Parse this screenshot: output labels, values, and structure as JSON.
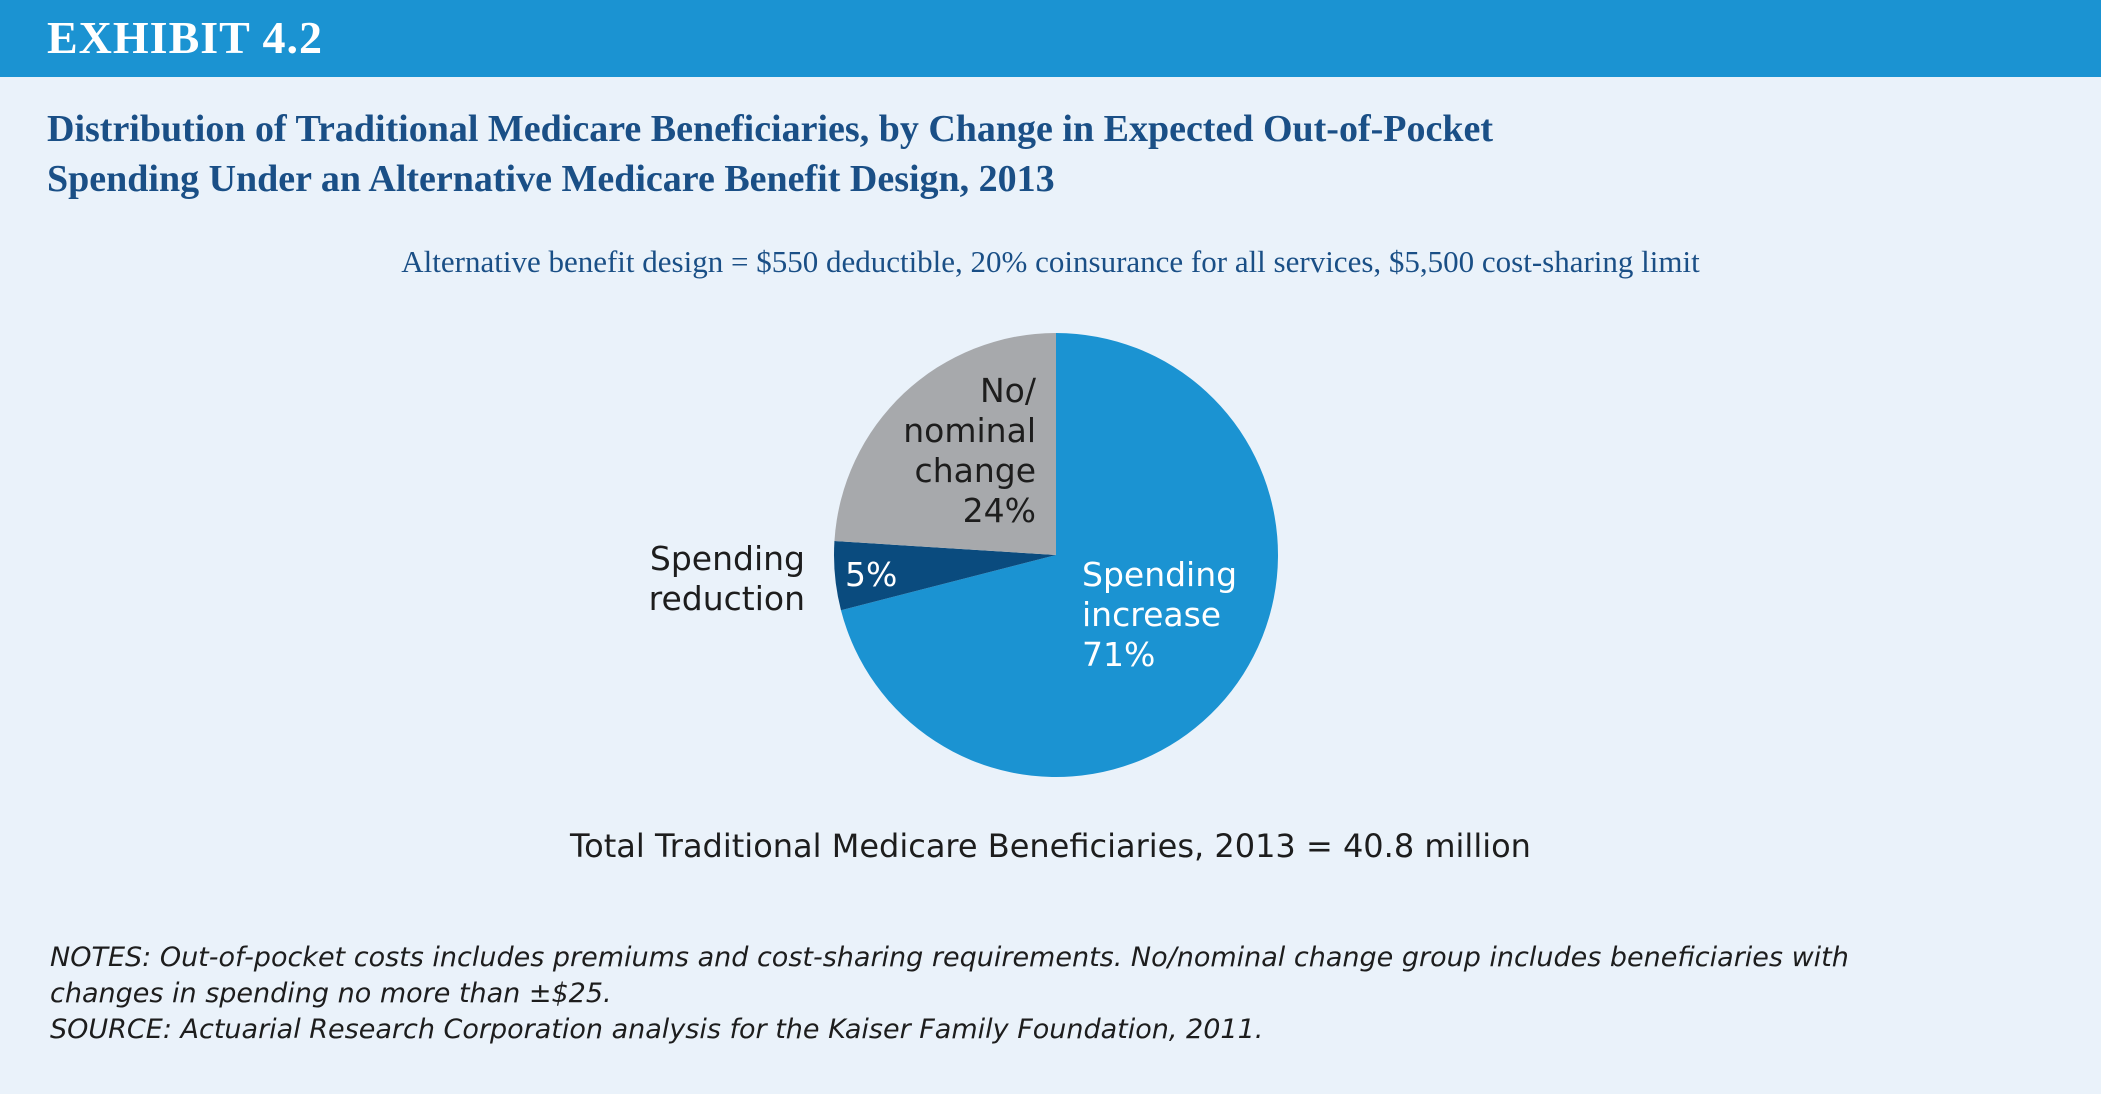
{
  "exhibit": {
    "label": "EXHIBIT 4.2",
    "color": "#1b93d2"
  },
  "title_lines": [
    "Distribution of Traditional Medicare Beneficiaries, by Change in Expected Out-of-Pocket",
    "Spending Under an Alternative Medicare Benefit Design, 2013"
  ],
  "subtitle": "Alternative benefit design = $550 deductible, 20% coinsurance for all services, $5,500 cost-sharing limit",
  "chart_data": {
    "type": "pie",
    "title": "Distribution of Traditional Medicare Beneficiaries, by Change in Expected Out-of-Pocket Spending Under an Alternative Medicare Benefit Design, 2013",
    "subtitle": "Alternative benefit design = $550 deductible, 20% coinsurance for all services, $5,500 cost-sharing limit",
    "unit": "%",
    "slices": [
      {
        "label_lines": [
          "Spending",
          "increase"
        ],
        "value": 71,
        "value_label": "71%",
        "color": "#1b93d2"
      },
      {
        "label_lines": [
          "Spending",
          "reduction"
        ],
        "value": 5,
        "value_label": "5%",
        "color": "#0a4b7e"
      },
      {
        "label_lines": [
          "No/",
          "nominal",
          "change"
        ],
        "value": 24,
        "value_label": "24%",
        "color": "#a7a9ac"
      }
    ],
    "total_text": "Total Traditional Medicare Beneficiaries, 2013 = 40.8 million"
  },
  "notes": {
    "lines": [
      "NOTES:  Out-of-pocket costs includes premiums and cost-sharing requirements. No/nominal change group includes beneficiaries with",
      "changes in spending no more than ±$25.",
      "SOURCE:  Actuarial Research Corporation analysis for the Kaiser Family Foundation, 2011."
    ]
  }
}
